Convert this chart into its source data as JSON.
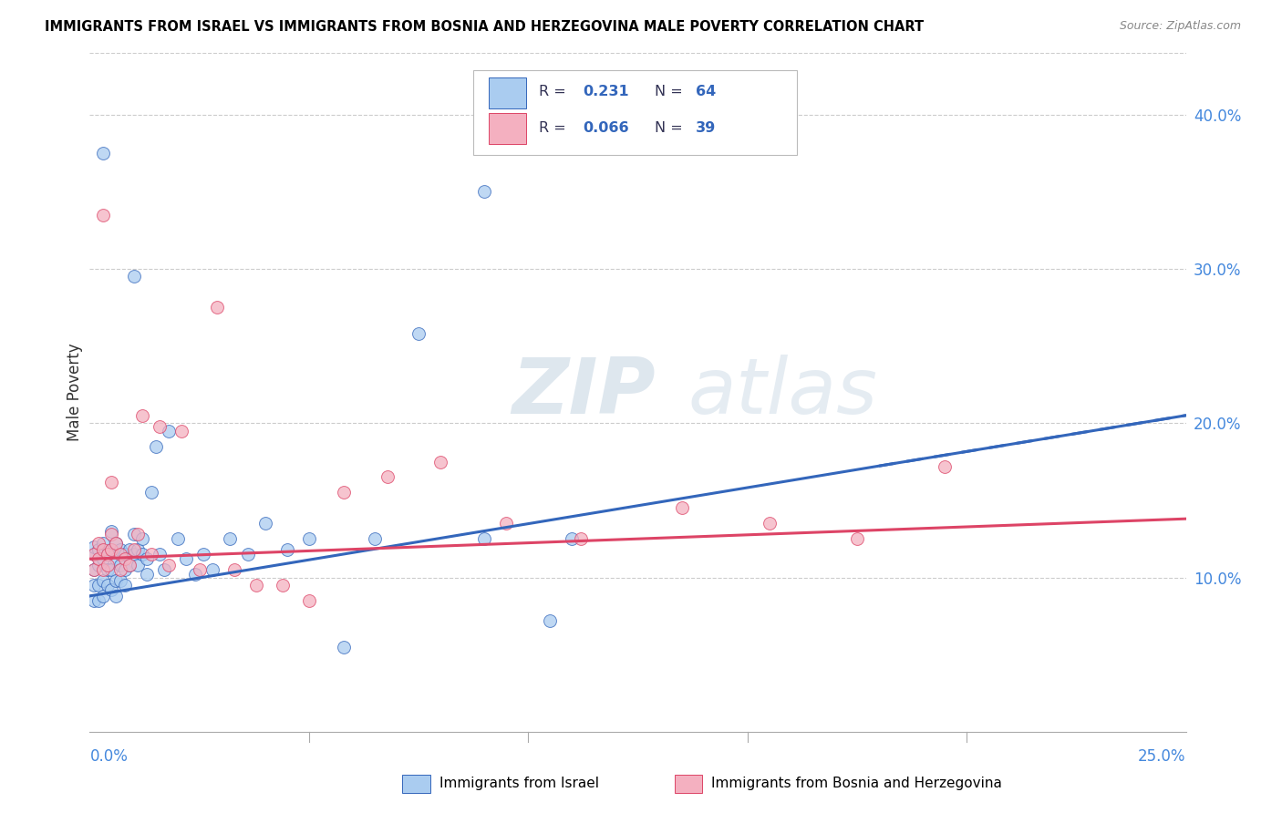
{
  "title": "IMMIGRANTS FROM ISRAEL VS IMMIGRANTS FROM BOSNIA AND HERZEGOVINA MALE POVERTY CORRELATION CHART",
  "source": "Source: ZipAtlas.com",
  "ylabel": "Male Poverty",
  "ytick_labels": [
    "10.0%",
    "20.0%",
    "30.0%",
    "40.0%"
  ],
  "ytick_vals": [
    0.1,
    0.2,
    0.3,
    0.4
  ],
  "xlim": [
    0.0,
    0.25
  ],
  "ylim": [
    0.0,
    0.44
  ],
  "legend_label1": "Immigrants from Israel",
  "legend_label2": "Immigrants from Bosnia and Herzegovina",
  "R1_text": "0.231",
  "N1_text": "64",
  "R2_text": "0.066",
  "N2_text": "39",
  "color1": "#aaccf0",
  "color2": "#f4b0c0",
  "trendline1_color": "#3366bb",
  "trendline2_color": "#dd4466",
  "watermark_zip": "ZIP",
  "watermark_atlas": "atlas",
  "israel_x": [
    0.001,
    0.001,
    0.001,
    0.001,
    0.001,
    0.002,
    0.002,
    0.002,
    0.002,
    0.003,
    0.003,
    0.003,
    0.003,
    0.004,
    0.004,
    0.004,
    0.005,
    0.005,
    0.005,
    0.005,
    0.006,
    0.006,
    0.006,
    0.006,
    0.007,
    0.007,
    0.007,
    0.008,
    0.008,
    0.008,
    0.009,
    0.009,
    0.01,
    0.01,
    0.011,
    0.011,
    0.012,
    0.012,
    0.013,
    0.013,
    0.014,
    0.015,
    0.016,
    0.017,
    0.018,
    0.02,
    0.022,
    0.024,
    0.026,
    0.028,
    0.032,
    0.036,
    0.04,
    0.045,
    0.05,
    0.058,
    0.065,
    0.075,
    0.09,
    0.105,
    0.003,
    0.01,
    0.09,
    0.11
  ],
  "israel_y": [
    0.115,
    0.12,
    0.105,
    0.095,
    0.085,
    0.118,
    0.108,
    0.095,
    0.085,
    0.122,
    0.112,
    0.098,
    0.088,
    0.115,
    0.105,
    0.095,
    0.13,
    0.118,
    0.105,
    0.092,
    0.122,
    0.112,
    0.098,
    0.088,
    0.118,
    0.108,
    0.098,
    0.115,
    0.105,
    0.095,
    0.118,
    0.108,
    0.128,
    0.115,
    0.118,
    0.108,
    0.125,
    0.115,
    0.112,
    0.102,
    0.155,
    0.185,
    0.115,
    0.105,
    0.195,
    0.125,
    0.112,
    0.102,
    0.115,
    0.105,
    0.125,
    0.115,
    0.135,
    0.118,
    0.125,
    0.055,
    0.125,
    0.258,
    0.125,
    0.072,
    0.375,
    0.295,
    0.35,
    0.125
  ],
  "bosnia_x": [
    0.001,
    0.001,
    0.002,
    0.002,
    0.003,
    0.003,
    0.004,
    0.004,
    0.005,
    0.005,
    0.006,
    0.007,
    0.007,
    0.008,
    0.009,
    0.01,
    0.011,
    0.012,
    0.014,
    0.016,
    0.018,
    0.021,
    0.025,
    0.029,
    0.033,
    0.038,
    0.044,
    0.05,
    0.058,
    0.068,
    0.08,
    0.095,
    0.112,
    0.135,
    0.155,
    0.175,
    0.003,
    0.005,
    0.195
  ],
  "bosnia_y": [
    0.115,
    0.105,
    0.122,
    0.112,
    0.105,
    0.118,
    0.115,
    0.108,
    0.128,
    0.118,
    0.122,
    0.115,
    0.105,
    0.112,
    0.108,
    0.118,
    0.128,
    0.205,
    0.115,
    0.198,
    0.108,
    0.195,
    0.105,
    0.275,
    0.105,
    0.095,
    0.095,
    0.085,
    0.155,
    0.165,
    0.175,
    0.135,
    0.125,
    0.145,
    0.135,
    0.125,
    0.335,
    0.162,
    0.172
  ],
  "trendline1_start_y": 0.088,
  "trendline1_end_y": 0.205,
  "trendline2_start_y": 0.112,
  "trendline2_end_y": 0.138
}
